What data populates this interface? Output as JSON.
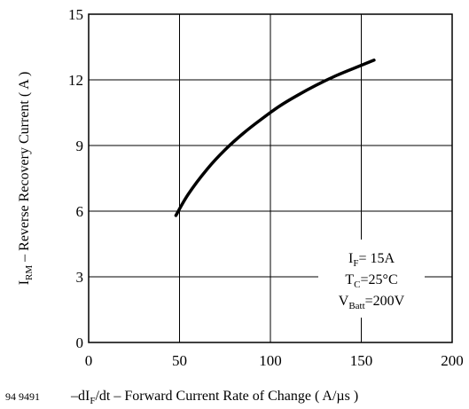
{
  "figure_number": "94 9491",
  "chart_data": {
    "type": "line",
    "xlabel": {
      "pre": "–dI",
      "sub": "F",
      "post": "/dt – Forward Current Rate of Change ( A/µs )"
    },
    "ylabel": {
      "pre": "I",
      "sub": "RM",
      "post": " – Reverse Recovery Current ( A )"
    },
    "xlim": [
      0,
      200
    ],
    "ylim": [
      0,
      15
    ],
    "x_ticks": [
      0,
      50,
      100,
      150,
      200
    ],
    "y_ticks": [
      0,
      3,
      6,
      9,
      12,
      15
    ],
    "grid": true,
    "series": [
      {
        "x": [
          48,
          55,
          65,
          75,
          85,
          95,
          105,
          115,
          125,
          135,
          145,
          157
        ],
        "y": [
          5.8,
          6.8,
          7.9,
          8.8,
          9.55,
          10.2,
          10.8,
          11.3,
          11.75,
          12.15,
          12.5,
          12.9
        ]
      }
    ],
    "annotation": [
      {
        "pre": "I",
        "sub": "F",
        "post": "= 15A"
      },
      {
        "pre": "T",
        "sub": "C",
        "post": "=25°C"
      },
      {
        "pre": "V",
        "sub": "Batt",
        "post": "=200V"
      }
    ]
  }
}
